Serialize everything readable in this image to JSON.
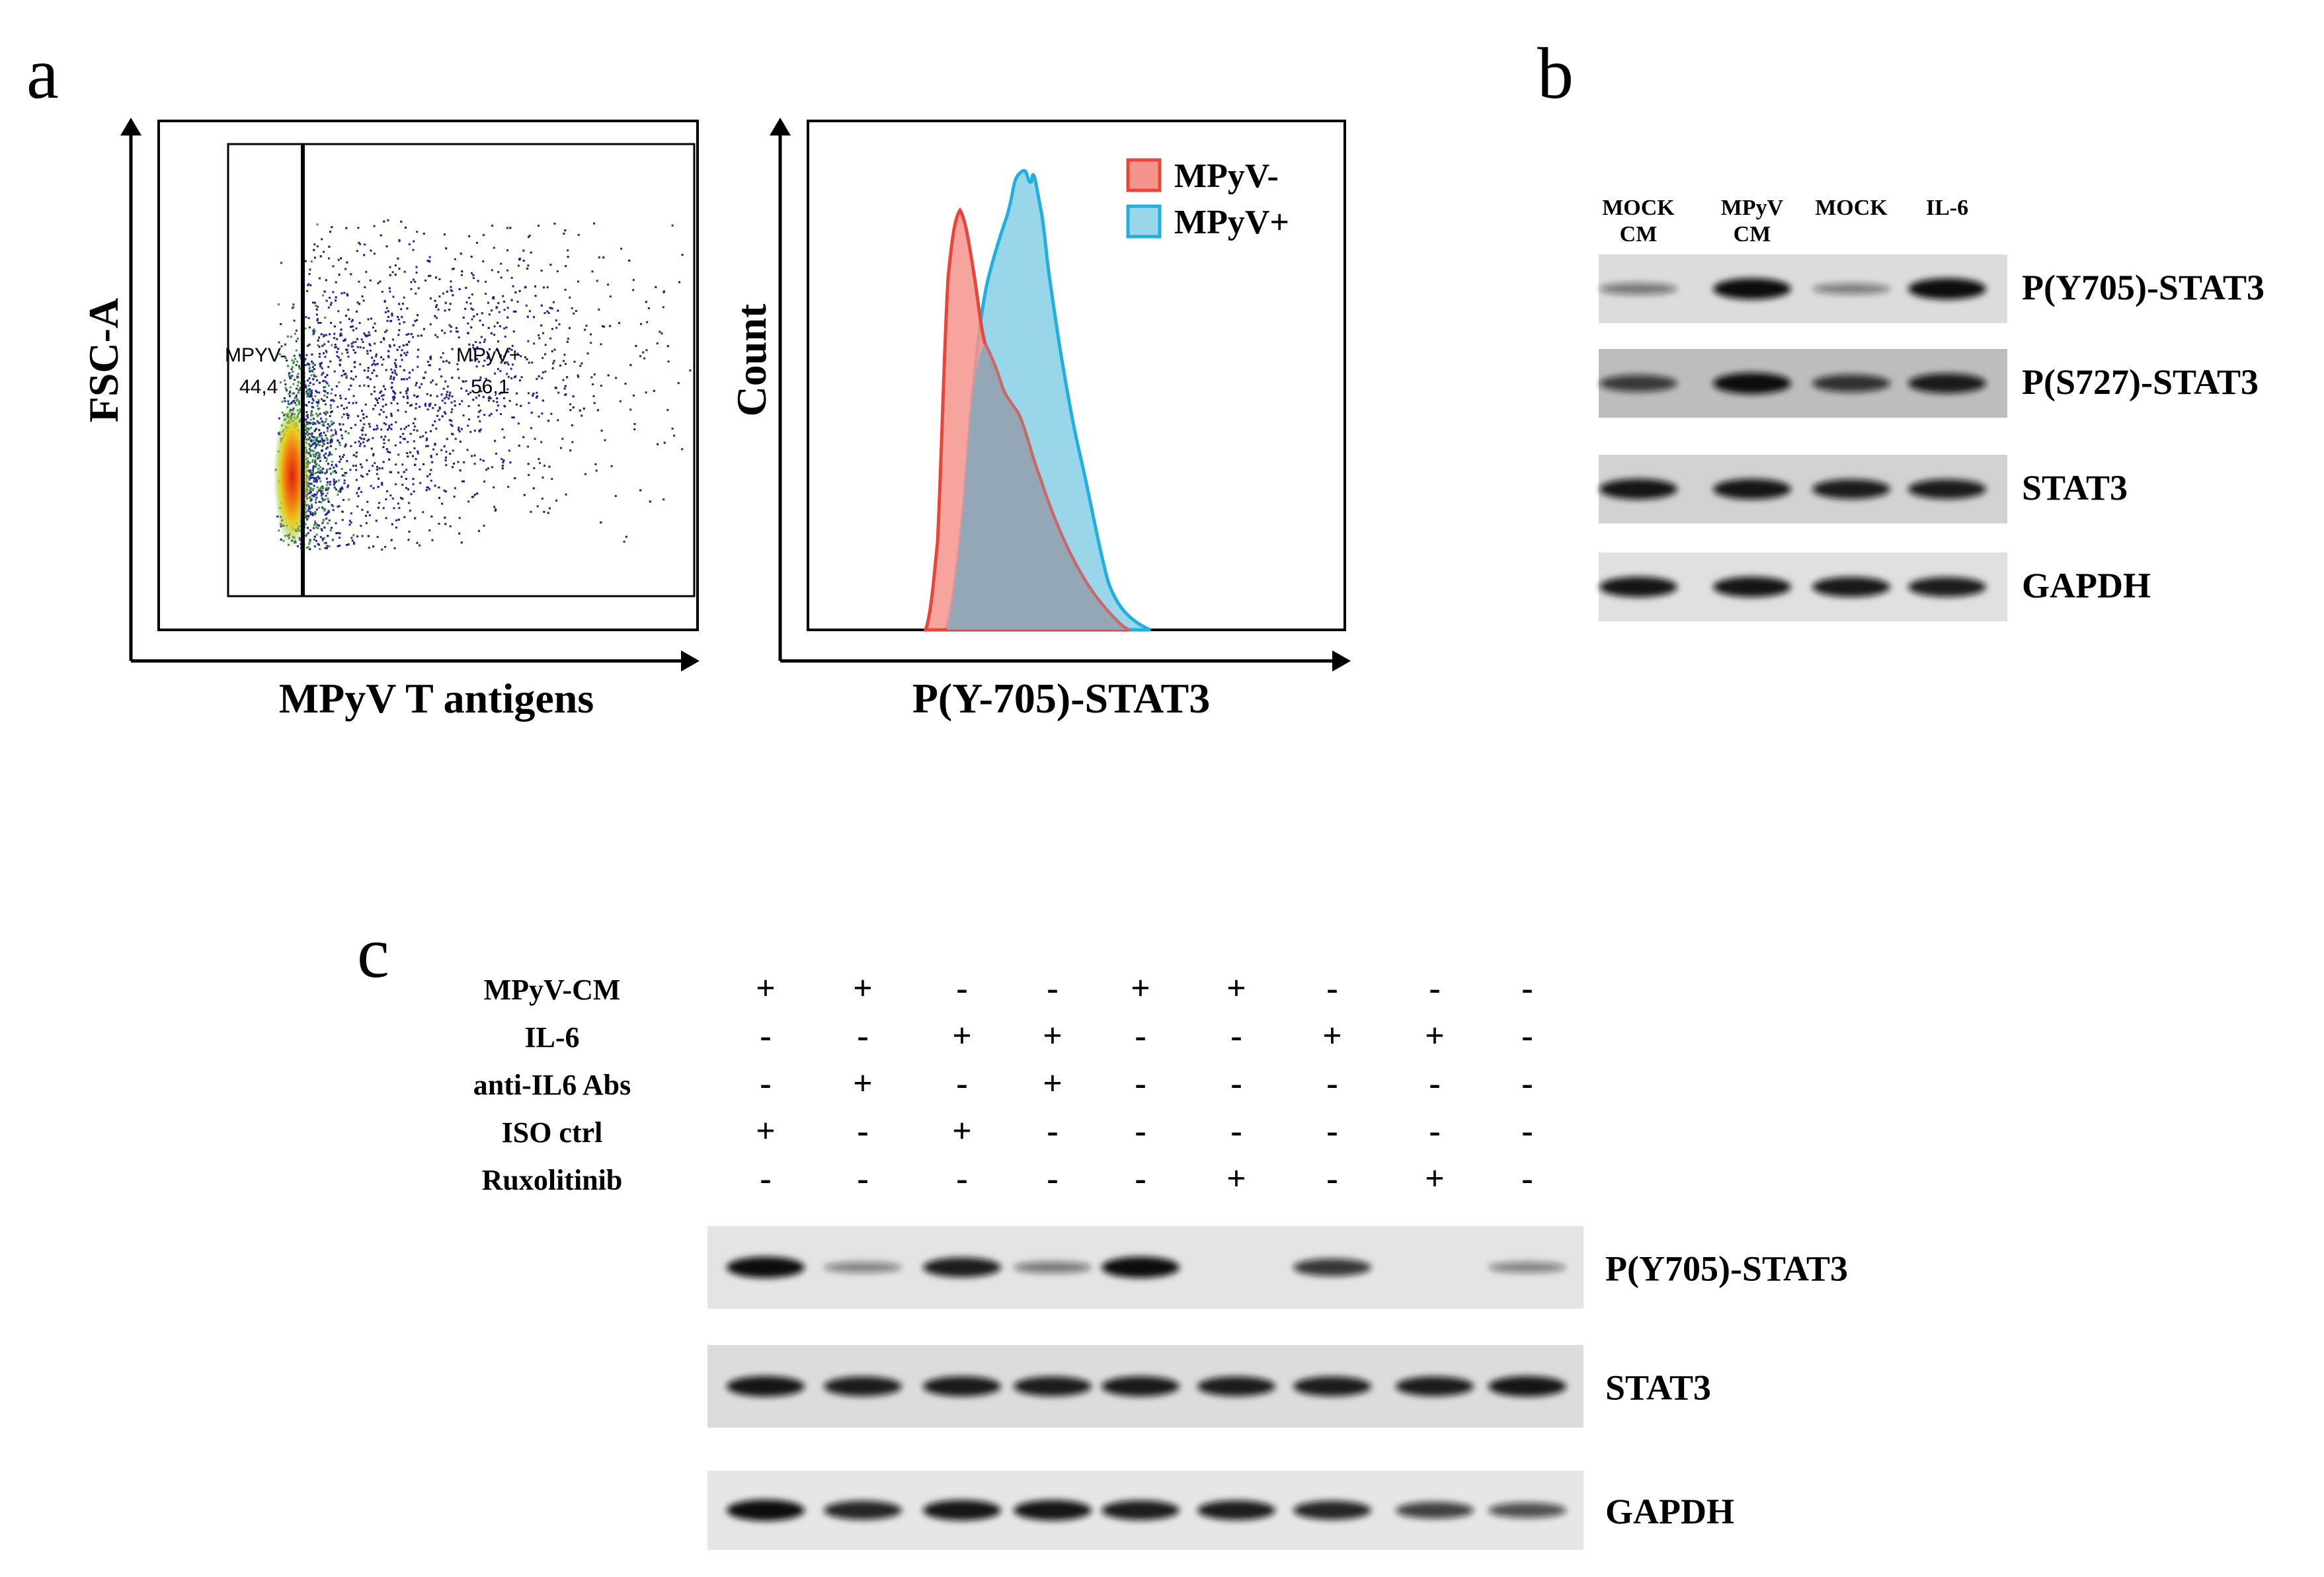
{
  "panels": {
    "a": {
      "letter": "a",
      "flow": {
        "ylabel": "FSC-A",
        "xlabel": "MPyV T antigens",
        "gate_neg": {
          "name": "MPYV-",
          "percent": "44,4"
        },
        "gate_pos": {
          "name": "MPyV+",
          "percent": "56,1"
        }
      },
      "hist": {
        "ylabel": "Count",
        "xlabel": "P(Y-705)-STAT3",
        "legend": [
          {
            "label": "MPyV-",
            "stroke": "#e8463a",
            "fill": "#f4948c"
          },
          {
            "label": "MPyV+",
            "stroke": "#1fb0e0",
            "fill": "#9ad6ea"
          }
        ],
        "overlap_fill": "#8fa8b8"
      }
    },
    "b": {
      "letter": "b",
      "lanes": [
        [
          "MOCK",
          "CM"
        ],
        [
          "MPyV",
          "CM"
        ],
        [
          "MOCK"
        ],
        [
          "IL-6"
        ]
      ],
      "blots": [
        {
          "label": "P(Y705)-STAT3",
          "intensity": [
            0.35,
            1.0,
            0.3,
            1.0
          ]
        },
        {
          "label": "P(S727)-STAT3",
          "intensity": [
            0.7,
            1.0,
            0.75,
            0.9
          ]
        },
        {
          "label": "STAT3",
          "intensity": [
            0.95,
            0.95,
            0.9,
            0.9
          ]
        },
        {
          "label": "GAPDH",
          "intensity": [
            0.95,
            0.95,
            0.92,
            0.9
          ]
        }
      ]
    },
    "c": {
      "letter": "c",
      "conditions": [
        {
          "label": "MPyV-CM",
          "values": [
            "+",
            "+",
            "-",
            "-",
            "+",
            "+",
            "-",
            "-",
            "-"
          ]
        },
        {
          "label": "IL-6",
          "values": [
            "-",
            "-",
            "+",
            "+",
            "-",
            "-",
            "+",
            "+",
            "-"
          ]
        },
        {
          "label": "anti-IL6 Abs",
          "values": [
            "-",
            "+",
            "-",
            "+",
            "-",
            "-",
            "-",
            "-",
            "-"
          ]
        },
        {
          "label": "ISO ctrl",
          "values": [
            "+",
            "-",
            "+",
            "-",
            "-",
            "-",
            "-",
            "-",
            "-"
          ]
        },
        {
          "label": "Ruxolitinib",
          "values": [
            "-",
            "-",
            "-",
            "-",
            "-",
            "+",
            "-",
            "+",
            "-"
          ]
        }
      ],
      "blots": [
        {
          "label": "P(Y705)-STAT3",
          "intensity": [
            1.0,
            0.3,
            0.9,
            0.35,
            1.0,
            0.0,
            0.75,
            0.0,
            0.3
          ]
        },
        {
          "label": "STAT3",
          "intensity": [
            0.95,
            0.9,
            0.92,
            0.9,
            0.92,
            0.9,
            0.9,
            0.9,
            0.95
          ]
        },
        {
          "label": "GAPDH",
          "intensity": [
            1.0,
            0.85,
            0.95,
            0.95,
            0.9,
            0.9,
            0.85,
            0.7,
            0.6
          ]
        }
      ]
    }
  }
}
